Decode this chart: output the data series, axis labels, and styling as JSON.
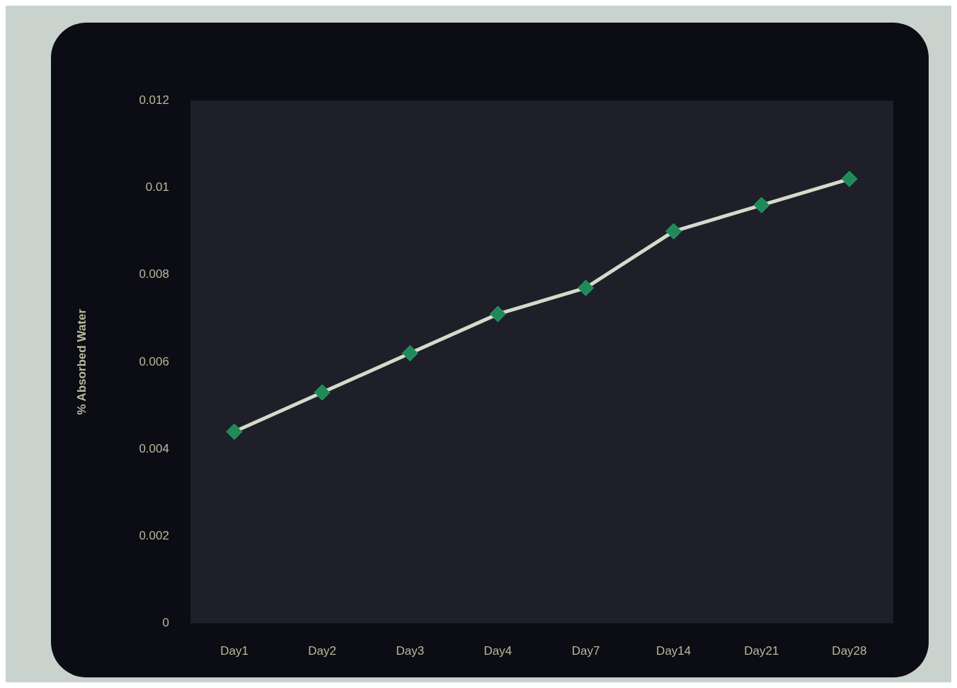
{
  "chart_data": {
    "type": "line",
    "ylabel": "% Absorbed Water",
    "categories": [
      "Day1",
      "Day2",
      "Day3",
      "Day4",
      "Day7",
      "Day14",
      "Day21",
      "Day28"
    ],
    "series": [
      {
        "color": "#d6dacb",
        "values": [
          0.0044,
          0.0053,
          0.0062,
          0.0071,
          0.0077,
          0.009,
          0.0096,
          0.0102
        ]
      }
    ],
    "ylim": [
      0,
      0.012
    ],
    "yticks": [
      0,
      0.002,
      0.004,
      0.006,
      0.008,
      0.01,
      0.012
    ],
    "grid": false,
    "legend": false,
    "marker": "diamond",
    "line_style": "solid"
  }
}
